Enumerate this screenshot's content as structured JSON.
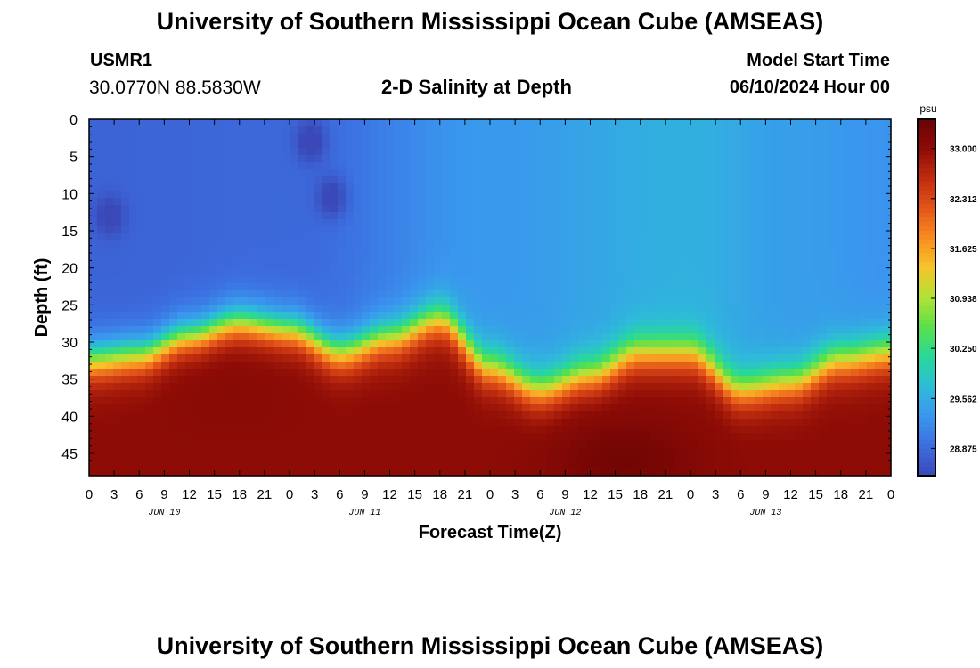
{
  "header": {
    "title": "University of Southern Mississippi Ocean Cube (AMSEAS)",
    "station": "USMR1",
    "coords": "30.0770N  88.5830W",
    "subtitle": "2-D Salinity at Depth",
    "model_start_label": "Model Start Time",
    "model_start_value": "06/10/2024 Hour 00",
    "footer_title": "University of Southern Mississippi Ocean Cube (AMSEAS)"
  },
  "chart_data": {
    "type": "heatmap",
    "title": "2-D Salinity at Depth",
    "xlabel": "Forecast Time(Z)",
    "ylabel": "Depth (ft)",
    "x_hours_range": [
      0,
      96
    ],
    "x_tick_labels": [
      "0",
      "3",
      "6",
      "9",
      "12",
      "15",
      "18",
      "21",
      "0",
      "3",
      "6",
      "9",
      "12",
      "15",
      "18",
      "21",
      "0",
      "3",
      "6",
      "9",
      "12",
      "15",
      "18",
      "21",
      "0",
      "3",
      "6",
      "9",
      "12",
      "15",
      "18",
      "21",
      "0"
    ],
    "date_labels": [
      "JUN 10",
      "JUN 11",
      "JUN 12",
      "JUN 13"
    ],
    "ylim": [
      0,
      48
    ],
    "y_ticks": [
      0,
      5,
      10,
      15,
      20,
      25,
      30,
      35,
      40,
      45
    ],
    "colorbar": {
      "unit": "psu",
      "range": [
        28.5,
        33.4
      ],
      "ticks": [
        "28.875",
        "29.562",
        "30.250",
        "30.938",
        "31.625",
        "32.312",
        "33.000"
      ]
    },
    "halocline_depth_ft": {
      "hours": [
        0,
        6,
        12,
        18,
        24,
        30,
        36,
        42,
        48,
        54,
        60,
        66,
        72,
        78,
        84,
        90,
        96
      ],
      "depth": [
        29,
        28.5,
        26,
        24,
        25,
        28,
        26,
        23.5,
        30,
        33,
        31,
        28,
        28,
        33,
        32,
        29,
        28
      ]
    },
    "surface_salinity_psu": {
      "hours": [
        0,
        24,
        48,
        72,
        84,
        96
      ],
      "values": [
        28.8,
        28.85,
        29.35,
        29.6,
        29.4,
        29.3
      ]
    },
    "bottom_salinity_psu": 33.0,
    "fresh_pockets": [
      {
        "hour": 2.5,
        "depth_ft": 13,
        "psu": 28.4
      },
      {
        "hour": 26.5,
        "depth_ft": 3,
        "psu": 28.35
      },
      {
        "hour": 29,
        "depth_ft": 10.5,
        "psu": 28.4
      }
    ],
    "salty_cores": [
      {
        "hour": 17,
        "depth_ft": 37,
        "psu": 33.05
      },
      {
        "hour": 64,
        "depth_ft": 46,
        "psu": 33.3
      }
    ],
    "colors": [
      "#3b48b8",
      "#3c6ee0",
      "#3a96ee",
      "#2dbcd8",
      "#28d89a",
      "#5ae04a",
      "#b2e236",
      "#f5c52b",
      "#f98c20",
      "#e3561a",
      "#c02d0f",
      "#8e0c06",
      "#6a0303"
    ]
  }
}
